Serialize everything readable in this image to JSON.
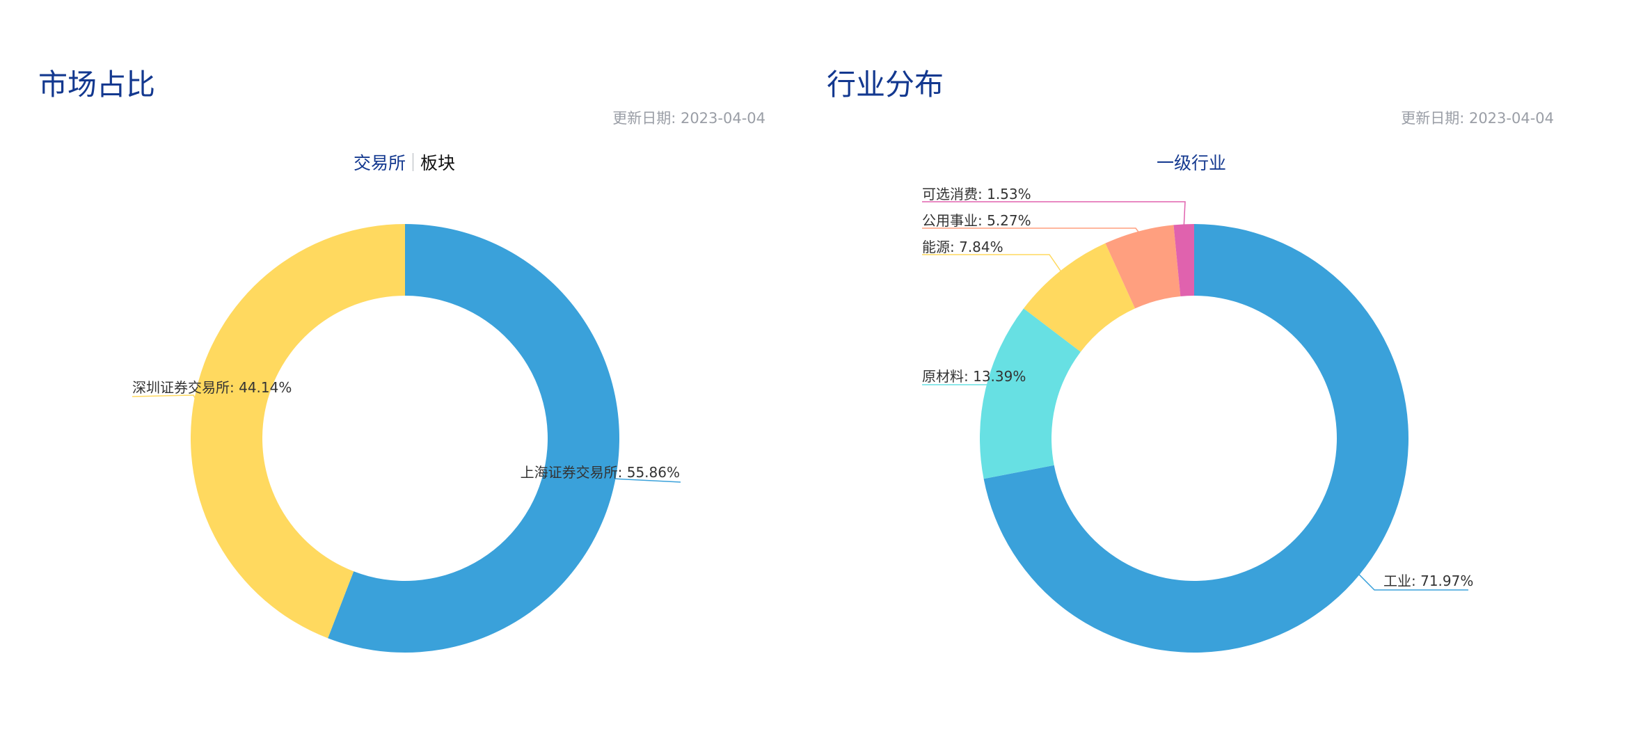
{
  "panels": [
    {
      "title": "市场占比",
      "update_label": "更新日期: 2023-04-04",
      "tabs": [
        {
          "label": "交易所",
          "active": true
        },
        {
          "label": "板块",
          "active": false
        }
      ]
    },
    {
      "title": "行业分布",
      "update_label": "更新日期: 2023-04-04",
      "tabs": [
        {
          "label": "一级行业",
          "active": true
        }
      ]
    }
  ],
  "chart_data": [
    {
      "type": "pie",
      "variant": "donut",
      "slices": [
        {
          "name": "上海证券交易所",
          "value": 55.86,
          "label": "上海证券交易所: 55.86%",
          "color": "#3aa1da"
        },
        {
          "name": "深圳证券交易所",
          "value": 44.14,
          "label": "深圳证券交易所: 44.14%",
          "color": "#ffd95f"
        }
      ]
    },
    {
      "type": "pie",
      "variant": "donut",
      "slices": [
        {
          "name": "工业",
          "value": 71.97,
          "label": "工业: 71.97%",
          "color": "#3aa1da"
        },
        {
          "name": "原材料",
          "value": 13.39,
          "label": "原材料: 13.39%",
          "color": "#67e0e3"
        },
        {
          "name": "能源",
          "value": 7.84,
          "label": "能源: 7.84%",
          "color": "#ffd95f"
        },
        {
          "name": "公用事业",
          "value": 5.27,
          "label": "公用事业: 5.27%",
          "color": "#ff9f7f"
        },
        {
          "name": "可选消费",
          "value": 1.53,
          "label": "可选消费: 1.53%",
          "color": "#e062ae"
        }
      ]
    }
  ]
}
